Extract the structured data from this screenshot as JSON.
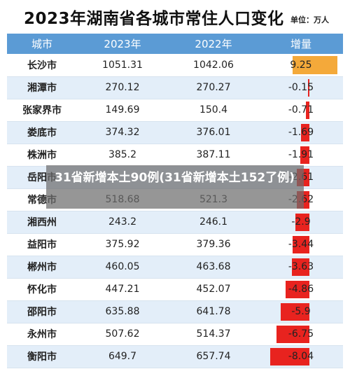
{
  "header": {
    "title": "2023年湖南省各城市常住人口变化",
    "unit": "单位：万人"
  },
  "table": {
    "columns": [
      "城市",
      "2023年",
      "2022年",
      "增量"
    ],
    "rows": [
      {
        "city": "长沙市",
        "y2023": "1051.31",
        "y2022": "1042.06",
        "change": "9.25",
        "value": 9.25
      },
      {
        "city": "湘潭市",
        "y2023": "270.12",
        "y2022": "270.27",
        "change": "-0.15",
        "value": -0.15
      },
      {
        "city": "张家界市",
        "y2023": "149.69",
        "y2022": "150.4",
        "change": "-0.71",
        "value": -0.71
      },
      {
        "city": "娄底市",
        "y2023": "374.32",
        "y2022": "376.01",
        "change": "-1.69",
        "value": -1.69
      },
      {
        "city": "株洲市",
        "y2023": "385.2",
        "y2022": "387.11",
        "change": "-1.91",
        "value": -1.91
      },
      {
        "city": "岳阳市",
        "y2023": "",
        "y2022": "",
        "change": "-2.61",
        "value": -2.61
      },
      {
        "city": "常德市",
        "y2023": "518.68",
        "y2022": "521.3",
        "change": "-2.62",
        "value": -2.62
      },
      {
        "city": "湘西州",
        "y2023": "243.2",
        "y2022": "246.1",
        "change": "-2.9",
        "value": -2.9
      },
      {
        "city": "益阳市",
        "y2023": "375.92",
        "y2022": "379.36",
        "change": "-3.44",
        "value": -3.44
      },
      {
        "city": "郴州市",
        "y2023": "460.05",
        "y2022": "463.68",
        "change": "-3.63",
        "value": -3.63
      },
      {
        "city": "怀化市",
        "y2023": "447.21",
        "y2022": "452.07",
        "change": "-4.86",
        "value": -4.86
      },
      {
        "city": "邵阳市",
        "y2023": "635.88",
        "y2022": "641.78",
        "change": "-5.9",
        "value": -5.9
      },
      {
        "city": "永州市",
        "y2023": "507.62",
        "y2022": "514.37",
        "change": "-6.75",
        "value": -6.75
      },
      {
        "city": "衡阳市",
        "y2023": "649.7",
        "y2022": "657.74",
        "change": "-8.04",
        "value": -8.04
      }
    ]
  },
  "overlay": {
    "text": "31省新增本土90例(31省新增本土152了例)"
  }
}
